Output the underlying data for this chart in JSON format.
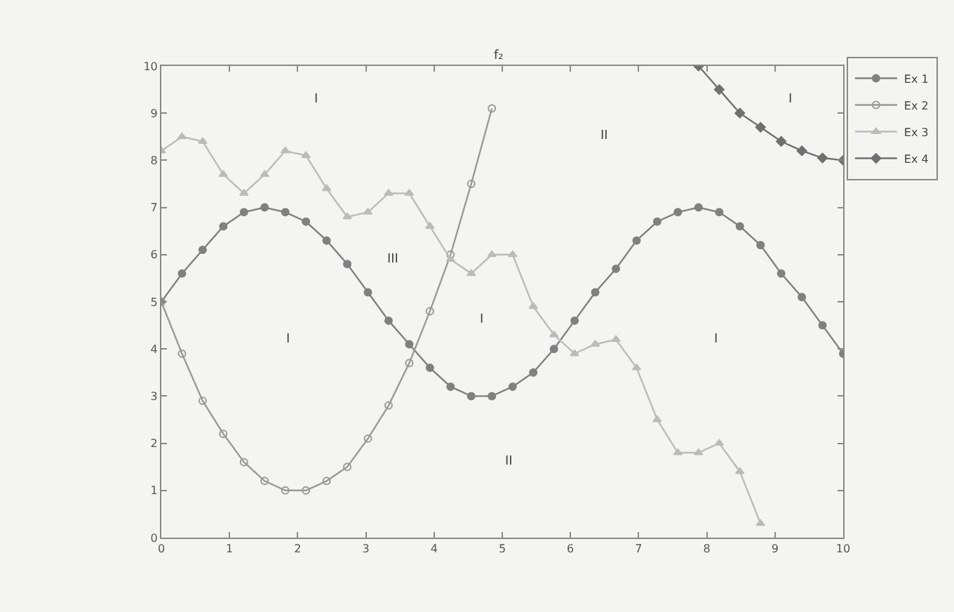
{
  "chart_data": {
    "type": "line",
    "xlim": [
      0,
      10
    ],
    "ylim": [
      0,
      10
    ],
    "xticks": [
      0,
      1,
      2,
      3,
      4,
      5,
      6,
      7,
      8,
      9,
      10
    ],
    "yticks": [
      0,
      1,
      2,
      3,
      4,
      5,
      6,
      7,
      8,
      9,
      10
    ],
    "grid": false,
    "legend": "top right",
    "line_style": "solid",
    "series": [
      {
        "name": "Ex 1",
        "color": "#808080",
        "marker": "circle",
        "x": [
          0,
          0.303,
          0.606,
          0.909,
          1.212,
          1.515,
          1.818,
          2.121,
          2.424,
          2.727,
          3.03,
          3.333,
          3.636,
          3.939,
          4.242,
          4.545,
          4.848,
          5.152,
          5.455,
          5.758,
          6.061,
          6.364,
          6.667,
          6.97,
          7.273,
          7.576,
          7.879,
          8.182,
          8.485,
          8.788,
          9.091,
          9.394,
          9.697,
          10
        ],
        "values": [
          5.0,
          5.6,
          6.1,
          6.6,
          6.9,
          7.0,
          6.9,
          6.7,
          6.3,
          5.8,
          5.2,
          4.6,
          4.1,
          3.6,
          3.2,
          3.0,
          3.0,
          3.2,
          3.5,
          4.0,
          4.6,
          5.2,
          5.7,
          6.3,
          6.7,
          6.9,
          7.0,
          6.9,
          6.6,
          6.2,
          5.6,
          5.1,
          4.5,
          3.9
        ]
      },
      {
        "name": "Ex 2",
        "color": "#999999",
        "marker": "circle-open",
        "x": [
          0,
          0.303,
          0.606,
          0.909,
          1.212,
          1.515,
          1.818,
          2.121,
          2.424,
          2.727,
          3.03,
          3.333,
          3.636,
          3.939,
          4.242,
          4.545,
          4.848
        ],
        "values": [
          5.0,
          3.9,
          2.9,
          2.2,
          1.6,
          1.2,
          1.0,
          1.0,
          1.2,
          1.5,
          2.1,
          2.8,
          3.7,
          4.8,
          6.0,
          7.5,
          9.1
        ]
      },
      {
        "name": "Ex 3",
        "color": "#bbbbbb",
        "marker": "triangle",
        "x": [
          0,
          0.303,
          0.606,
          0.909,
          1.212,
          1.515,
          1.818,
          2.121,
          2.424,
          2.727,
          3.03,
          3.333,
          3.636,
          3.939,
          4.242,
          4.545,
          4.848,
          5.152,
          5.455,
          5.758,
          6.061,
          6.364,
          6.667,
          6.97,
          7.273,
          7.576,
          7.879,
          8.182,
          8.485,
          8.788
        ],
        "values": [
          8.2,
          8.5,
          8.4,
          7.7,
          7.3,
          7.7,
          8.2,
          8.1,
          7.4,
          6.8,
          6.9,
          7.3,
          7.3,
          6.6,
          5.9,
          5.6,
          6.0,
          6.0,
          4.9,
          4.3,
          3.9,
          4.1,
          4.2,
          3.6,
          2.5,
          1.8,
          1.8,
          2.0,
          1.4,
          0.3
        ]
      },
      {
        "name": "Ex 4",
        "color": "#707070",
        "marker": "diamond",
        "x": [
          7.879,
          8.182,
          8.485,
          8.788,
          9.091,
          9.394,
          9.697,
          10
        ],
        "values": [
          10.0,
          9.5,
          9.0,
          8.7,
          8.4,
          8.2,
          8.05,
          8.0
        ]
      }
    ],
    "annotations": [
      "f₂",
      "I",
      "II",
      "I",
      "III",
      "I",
      "I",
      "I",
      "II"
    ]
  }
}
